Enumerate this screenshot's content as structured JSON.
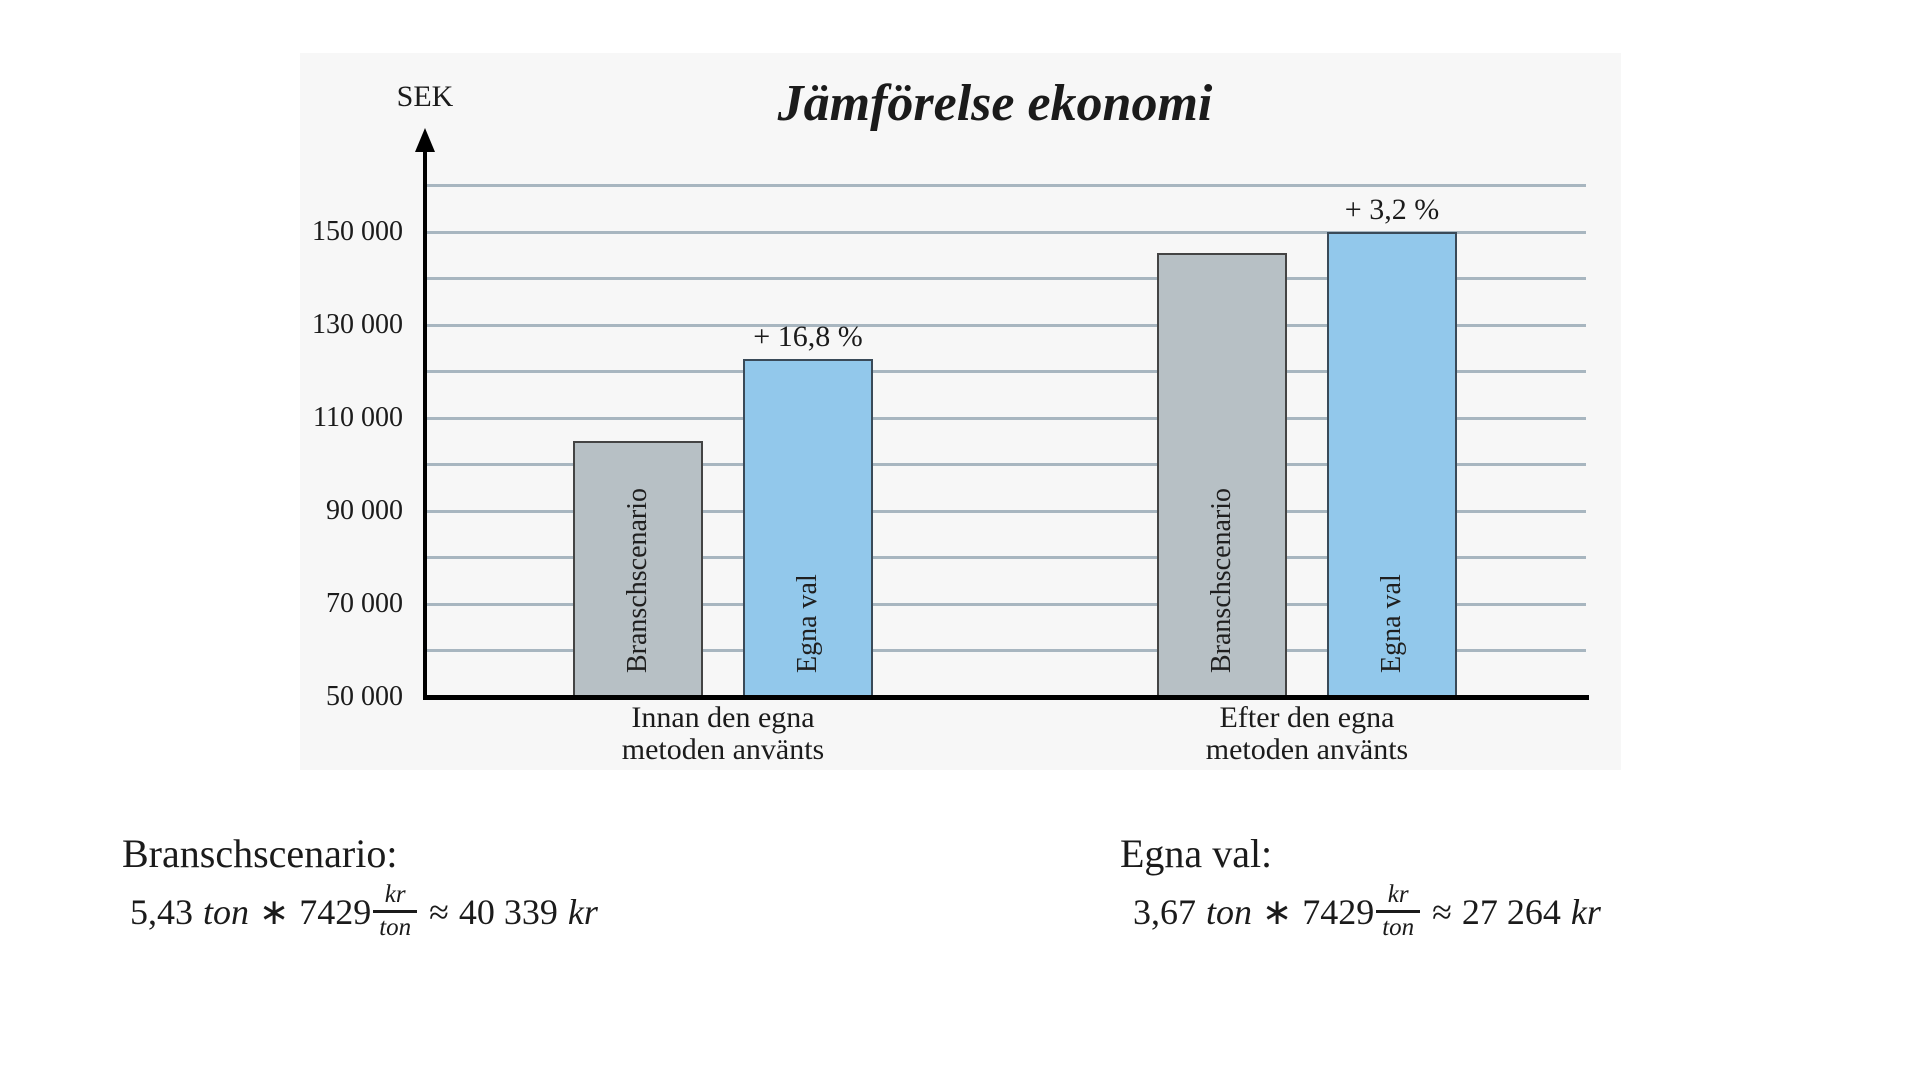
{
  "chart_data": {
    "type": "bar",
    "title": "Jämförelse ekonomi",
    "ylabel": "SEK",
    "baseline_value": 50000,
    "ylim": [
      50000,
      165000
    ],
    "gridline_step": 10000,
    "gridline_max": 160000,
    "grid": true,
    "legend_position": "none",
    "y_ticks": [
      {
        "value": 150000,
        "label": "150 000"
      },
      {
        "value": 130000,
        "label": "130 000"
      },
      {
        "value": 110000,
        "label": "110 000"
      },
      {
        "value": 90000,
        "label": "90 000"
      },
      {
        "value": 70000,
        "label": "70 000"
      },
      {
        "value": 50000,
        "label": "50 000"
      }
    ],
    "categories": [
      [
        "Innan den egna",
        "metoden använts"
      ],
      [
        "Efter den egna",
        "metoden använts"
      ]
    ],
    "series": [
      {
        "name": "Branschscenario",
        "color": "#b7c0c5",
        "border_color": "#444444",
        "values": [
          105000,
          145500
        ]
      },
      {
        "name": "Egna val",
        "color": "#92c8eb",
        "border_color": "#3a4a58",
        "values": [
          122600,
          150000
        ],
        "annotations": [
          "+ 16,8 %",
          "+ 3,2 %"
        ]
      }
    ]
  },
  "calcs": {
    "left": {
      "heading": "Branschscenario:",
      "coeff": "5,43",
      "unit": "ton",
      "op": "∗",
      "price": "7429",
      "frac_num": "kr",
      "frac_den": "ton",
      "approx": "≈",
      "result": "40 339",
      "result_unit": "kr"
    },
    "right": {
      "heading": "Egna val:",
      "coeff": "3,67",
      "unit": "ton",
      "op": "∗",
      "price": "7429",
      "frac_num": "kr",
      "frac_den": "ton",
      "approx": "≈",
      "result": "27 264",
      "result_unit": "kr"
    }
  }
}
